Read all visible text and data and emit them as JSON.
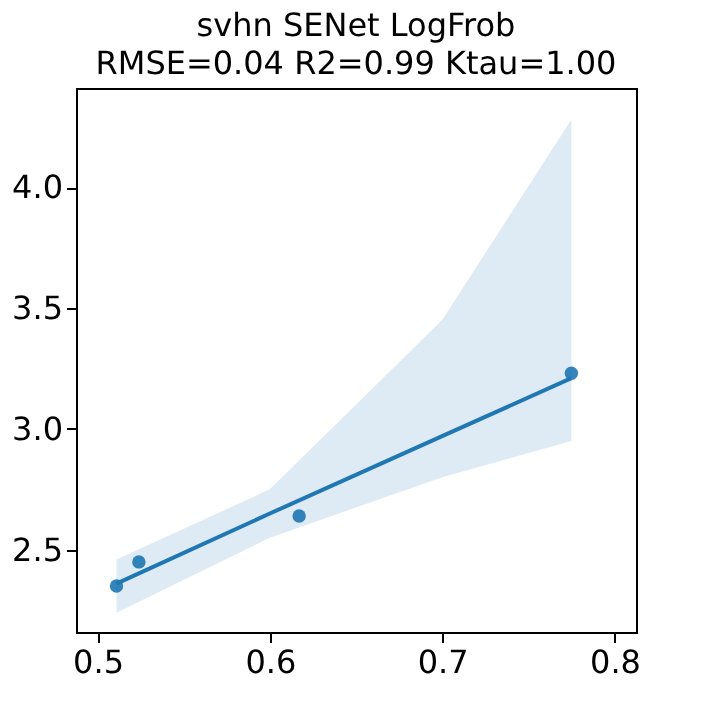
{
  "chart_data": {
    "type": "scatter",
    "title": "svhn SENet LogFrob",
    "subtitle": "RMSE=0.04  R2=0.99 Ktau=1.00",
    "xlim": [
      0.4875,
      0.8125
    ],
    "xticks": [
      0.5,
      0.6,
      0.7,
      0.8
    ],
    "ylim": [
      2.16,
      4.41
    ],
    "yticks": [
      2.5,
      {
        "value": 3,
        "label": "3.0"
      },
      3.5,
      {
        "value": 4,
        "label": "4.0"
      }
    ],
    "grid": false,
    "series": [
      {
        "color": "#1f77b4",
        "marker": "circle",
        "x": [
          0.511,
          0.524,
          0.617,
          0.775
        ],
        "values": [
          2.35,
          2.45,
          2.64,
          3.23
        ]
      },
      {
        "type": "line",
        "color": "#1f77b4",
        "marker": "none",
        "x": [
          0.511,
          0.6,
          0.7,
          0.775
        ],
        "values": [
          2.36,
          2.65,
          2.97,
          3.21
        ],
        "lower": [
          2.24,
          2.55,
          2.8,
          2.95
        ],
        "upper": [
          2.46,
          2.75,
          3.45,
          4.28
        ]
      }
    ]
  }
}
